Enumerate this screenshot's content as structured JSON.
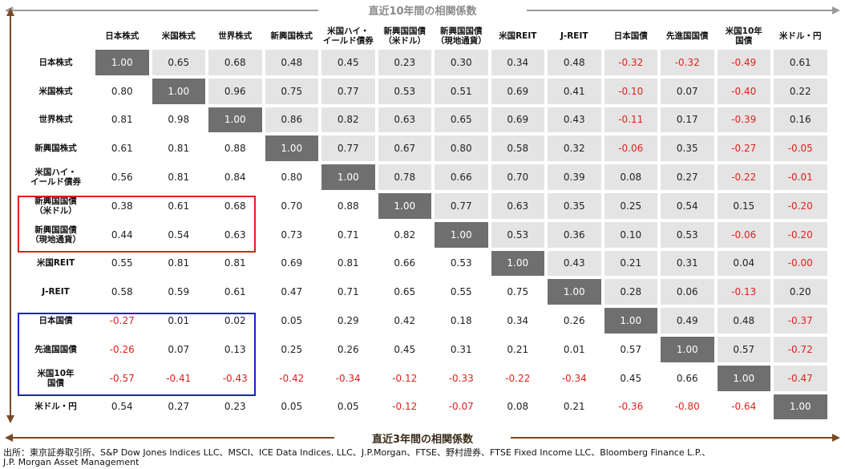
{
  "top_label": "直近10年間の相関係数",
  "bottom_label": "直近3年間の相関係数",
  "table": {
    "headers": [
      [
        "日本株式"
      ],
      [
        "米国株式"
      ],
      [
        "世界株式"
      ],
      [
        "新興国株式"
      ],
      [
        "米国ハイ・",
        "イールド債券"
      ],
      [
        "新興国国債",
        "（米ドル）"
      ],
      [
        "新興国国債",
        "（現地通貨）"
      ],
      [
        "米国REIT"
      ],
      [
        "J-REIT"
      ],
      [
        "日本国債"
      ],
      [
        "先進国国債"
      ],
      [
        "米国10年",
        "国債"
      ],
      [
        "米ドル・円"
      ]
    ],
    "rows": [
      {
        "label": [
          "日本株式"
        ],
        "values": [
          "1.00",
          "0.65",
          "0.68",
          "0.48",
          "0.45",
          "0.23",
          "0.30",
          "0.34",
          "0.48",
          "-0.32",
          "-0.32",
          "-0.49",
          "0.61"
        ]
      },
      {
        "label": [
          "米国株式"
        ],
        "values": [
          "0.80",
          "1.00",
          "0.96",
          "0.75",
          "0.77",
          "0.53",
          "0.51",
          "0.69",
          "0.41",
          "-0.10",
          "0.07",
          "-0.40",
          "0.22"
        ]
      },
      {
        "label": [
          "世界株式"
        ],
        "values": [
          "0.81",
          "0.98",
          "1.00",
          "0.86",
          "0.82",
          "0.63",
          "0.65",
          "0.69",
          "0.43",
          "-0.11",
          "0.17",
          "-0.39",
          "0.16"
        ]
      },
      {
        "label": [
          "新興国株式"
        ],
        "values": [
          "0.61",
          "0.81",
          "0.88",
          "1.00",
          "0.77",
          "0.67",
          "0.80",
          "0.58",
          "0.32",
          "-0.06",
          "0.35",
          "-0.27",
          "-0.05"
        ]
      },
      {
        "label": [
          "米国ハイ・",
          "イールド債券"
        ],
        "values": [
          "0.56",
          "0.81",
          "0.84",
          "0.80",
          "1.00",
          "0.78",
          "0.66",
          "0.70",
          "0.39",
          "0.08",
          "0.27",
          "-0.22",
          "-0.01"
        ]
      },
      {
        "label": [
          "新興国国債",
          "（米ドル）"
        ],
        "values": [
          "0.38",
          "0.61",
          "0.68",
          "0.70",
          "0.88",
          "1.00",
          "0.77",
          "0.63",
          "0.35",
          "0.25",
          "0.54",
          "0.15",
          "-0.20"
        ]
      },
      {
        "label": [
          "新興国国債",
          "（現地通貨）"
        ],
        "values": [
          "0.44",
          "0.54",
          "0.63",
          "0.73",
          "0.71",
          "0.82",
          "1.00",
          "0.53",
          "0.36",
          "0.10",
          "0.53",
          "-0.06",
          "-0.20"
        ]
      },
      {
        "label": [
          "米国REIT"
        ],
        "values": [
          "0.55",
          "0.81",
          "0.81",
          "0.69",
          "0.81",
          "0.66",
          "0.53",
          "1.00",
          "0.43",
          "0.21",
          "0.31",
          "0.04",
          "-0.00"
        ]
      },
      {
        "label": [
          "J-REIT"
        ],
        "values": [
          "0.58",
          "0.59",
          "0.61",
          "0.47",
          "0.71",
          "0.65",
          "0.55",
          "0.75",
          "1.00",
          "0.28",
          "0.06",
          "-0.13",
          "0.20"
        ]
      },
      {
        "label": [
          "日本国債"
        ],
        "values": [
          "-0.27",
          "0.01",
          "0.02",
          "0.05",
          "0.29",
          "0.42",
          "0.18",
          "0.34",
          "0.26",
          "1.00",
          "0.49",
          "0.48",
          "-0.37"
        ]
      },
      {
        "label": [
          "先進国国債"
        ],
        "values": [
          "-0.26",
          "0.07",
          "0.13",
          "0.25",
          "0.26",
          "0.45",
          "0.31",
          "0.21",
          "0.01",
          "0.57",
          "1.00",
          "0.57",
          "-0.72"
        ]
      },
      {
        "label": [
          "米国10年",
          "国債"
        ],
        "values": [
          "-0.57",
          "-0.41",
          "-0.43",
          "-0.42",
          "-0.34",
          "-0.12",
          "-0.33",
          "-0.22",
          "-0.34",
          "0.45",
          "0.66",
          "1.00",
          "-0.47"
        ]
      },
      {
        "label": [
          "米ドル・円"
        ],
        "values": [
          "0.54",
          "0.27",
          "0.23",
          "0.05",
          "0.05",
          "-0.12",
          "-0.07",
          "0.08",
          "0.21",
          "-0.36",
          "-0.80",
          "-0.64",
          "1.00"
        ]
      }
    ]
  },
  "source": [
    "出所：東京証券取引所、S&P Dow Jones Indices LLC、MSCI、ICE Data Indices, LLC、J.P.Morgan、FTSE、野村證券、FTSE Fixed Income LLC、Bloomberg Finance L.P.、",
    "J.P. Morgan Asset Management"
  ]
}
